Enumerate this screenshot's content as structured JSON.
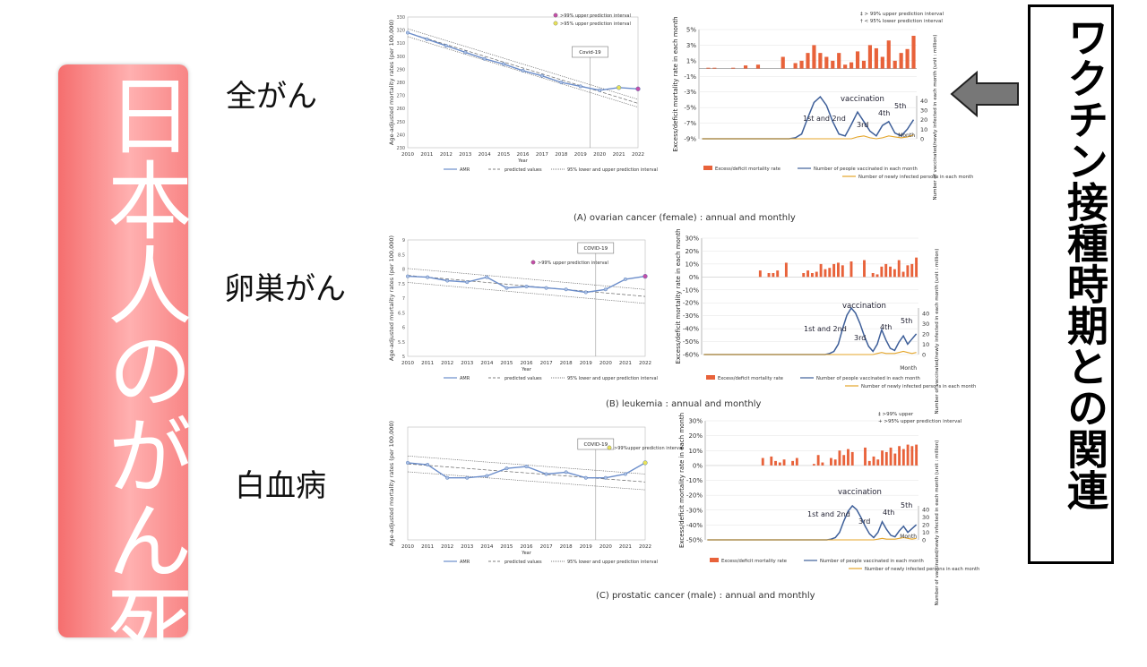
{
  "left_banner": {
    "text": "日本人のがん死"
  },
  "right_box": {
    "text": "ワクチン接種時期との関連"
  },
  "row_labels": [
    "全がん",
    "卵巣がん",
    "白血病"
  ],
  "captions": {
    "a": "(A) ovarian cancer (female) : annual and monthly",
    "b": "(B) leukemia : annual and monthly",
    "c": "(C) prostatic cancer (male) : annual and monthly"
  },
  "annual_common": {
    "years": [
      "2010",
      "2011",
      "2012",
      "2013",
      "2014",
      "2015",
      "2016",
      "2017",
      "2018",
      "2019",
      "2020",
      "2021",
      "2022"
    ],
    "xlabel": "Year",
    "ylabel": "Age-adjusted mortality rates (per 100,000)",
    "legend": [
      "AMR",
      "predicted values",
      "95% lower and upper prediction interval"
    ]
  },
  "monthly_common": {
    "ylabel_left": "Excess/deficit mortality rate in each month",
    "ylabel_right": "Number of vaccinated/newly infected in each month (unit : million)",
    "xlabel": "Month",
    "annotations": [
      "vaccination",
      "1st and 2nd",
      "3rd",
      "4th",
      "5th"
    ],
    "legend": [
      "Excess/deficit mortality rate",
      "Number of people vaccinated in each month",
      "Number of newly infected persons in each month"
    ],
    "right_ticks": [
      "0",
      "10",
      "20",
      "30",
      "40"
    ]
  },
  "chart_data": [
    {
      "type": "line",
      "panel": "all-cancer-annual",
      "x": [
        2010,
        2011,
        2012,
        2013,
        2014,
        2015,
        2016,
        2017,
        2018,
        2019,
        2020,
        2021,
        2022
      ],
      "series": [
        {
          "name": "AMR",
          "values": [
            318,
            313,
            308,
            303,
            298,
            294,
            289,
            285,
            280,
            277,
            274,
            276,
            275
          ]
        },
        {
          "name": "predicted values",
          "values": [
            318,
            313.5,
            309,
            304.5,
            300,
            295.5,
            291,
            286.5,
            282,
            277.5,
            273,
            268.5,
            264
          ]
        }
      ],
      "ylim": [
        230,
        330
      ],
      "yticks": [
        "230",
        "240",
        "250",
        "260",
        "270",
        "280",
        "290",
        "300",
        "310",
        "320",
        "330"
      ],
      "legend_notes": [
        ">99% upper prediction interval",
        ">95% upper prediction interval"
      ],
      "event_label": "Covid-19"
    },
    {
      "type": "bar",
      "panel": "all-cancer-monthly",
      "values": [
        0,
        0.1,
        0.1,
        0,
        0,
        0.1,
        0,
        0.4,
        0,
        0.5,
        0,
        0,
        0,
        1.5,
        0,
        0.7,
        1,
        2,
        3,
        2,
        1.5,
        1,
        2,
        0.5,
        0.8,
        2.2,
        1,
        3,
        2.6,
        1.5,
        3.6,
        1,
        2,
        2.5,
        4.2
      ],
      "ylim": [
        -9,
        5
      ],
      "yticks": [
        "5%",
        "3%",
        "1%",
        "-1%",
        "-3%",
        "-5%",
        "-7%",
        "-9%"
      ],
      "vaccinated": [
        0,
        0,
        0,
        0,
        0,
        0,
        0,
        0,
        0,
        0,
        0,
        0,
        0,
        0,
        0,
        1,
        5,
        22,
        38,
        44,
        35,
        18,
        5,
        3,
        15,
        28,
        18,
        8,
        3,
        14,
        18,
        6,
        3,
        10,
        20
      ],
      "infected": [
        0,
        0,
        0,
        0,
        0,
        0,
        0,
        0,
        0,
        0,
        0,
        0,
        0,
        0,
        0,
        0,
        0,
        0,
        0,
        0,
        0,
        0,
        0,
        0,
        0,
        2,
        3,
        1,
        0,
        1,
        3,
        2,
        1,
        2,
        4
      ],
      "legend_notes": [
        "‡ > 99% upper prediction interval",
        "† < 95% lower prediction interval"
      ]
    },
    {
      "type": "line",
      "panel": "ovarian-annual",
      "x": [
        2010,
        2011,
        2012,
        2013,
        2014,
        2015,
        2016,
        2017,
        2018,
        2019,
        2020,
        2021,
        2022
      ],
      "series": [
        {
          "name": "AMR",
          "values": [
            7.75,
            7.72,
            7.6,
            7.55,
            7.72,
            7.35,
            7.4,
            7.35,
            7.3,
            7.2,
            7.3,
            7.65,
            7.75
          ]
        },
        {
          "name": "predicted values",
          "values": [
            7.78,
            7.72,
            7.66,
            7.6,
            7.54,
            7.48,
            7.42,
            7.36,
            7.3,
            7.24,
            7.18,
            7.12,
            7.06
          ]
        }
      ],
      "ylim": [
        5,
        9
      ],
      "yticks": [
        "5",
        "5.5",
        "6",
        "6.5",
        "7",
        "7.5",
        "8",
        "8.5",
        "9"
      ],
      "legend_notes": [
        ">99% upper prediction interval"
      ],
      "event_label": "COVID-19"
    },
    {
      "type": "bar",
      "panel": "ovarian-monthly",
      "values": [
        0,
        0,
        0,
        0,
        0,
        0,
        0,
        0,
        0,
        0,
        0,
        0,
        0,
        5,
        0,
        3,
        3,
        5,
        0,
        11,
        0,
        0,
        0,
        3,
        5,
        3,
        4,
        10,
        6,
        7,
        10,
        11,
        9,
        0,
        12,
        0,
        0,
        13,
        0,
        3,
        2,
        8,
        10,
        8,
        6,
        13,
        4,
        9,
        10,
        15
      ],
      "ylim": [
        -60,
        30
      ],
      "yticks": [
        "30%",
        "20%",
        "10%",
        "0%",
        "-10%",
        "-20%",
        "-30%",
        "-40%",
        "-50%",
        "-60%"
      ],
      "vaccinated": [
        0,
        0,
        0,
        0,
        0,
        0,
        0,
        0,
        0,
        0,
        0,
        0,
        0,
        0,
        0,
        0,
        0,
        0,
        0,
        0,
        0,
        0,
        0,
        0,
        0,
        0,
        0,
        0,
        0,
        1,
        3,
        10,
        25,
        38,
        45,
        40,
        30,
        18,
        8,
        3,
        10,
        24,
        14,
        6,
        4,
        12,
        18,
        10,
        15,
        20
      ],
      "infected": [
        0,
        0,
        0,
        0,
        0,
        0,
        0,
        0,
        0,
        0,
        0,
        0,
        0,
        0,
        0,
        0,
        0,
        0,
        0,
        0,
        0,
        0,
        0,
        0,
        0,
        0,
        0,
        0,
        0,
        0,
        0,
        0,
        0,
        0,
        0,
        0,
        0,
        0,
        0,
        0,
        1,
        2,
        1,
        1,
        1,
        2,
        3,
        2,
        1,
        2
      ]
    },
    {
      "type": "line",
      "panel": "leukemia-annual",
      "x": [
        2010,
        2011,
        2012,
        2013,
        2014,
        2015,
        2016,
        2017,
        2018,
        2019,
        2020,
        2021,
        2022
      ],
      "series": [
        {
          "name": "AMR",
          "values": [
            7.05,
            7.0,
            6.65,
            6.65,
            6.7,
            6.9,
            6.95,
            6.75,
            6.8,
            6.65,
            6.65,
            6.75,
            7.05
          ]
        },
        {
          "name": "predicted values",
          "values": [
            7.02,
            6.98,
            6.94,
            6.9,
            6.86,
            6.82,
            6.78,
            6.74,
            6.7,
            6.66,
            6.62,
            6.58,
            6.54
          ]
        }
      ],
      "ylim": [
        5,
        8
      ],
      "legend_notes": [
        ">99%upper prediction interval"
      ],
      "event_label": "COVID-19"
    },
    {
      "type": "bar",
      "panel": "leukemia-monthly",
      "values": [
        0,
        0,
        0,
        0,
        0,
        0,
        0,
        0,
        0,
        0,
        0,
        0,
        0,
        5,
        0,
        6,
        3,
        2,
        4,
        0,
        3,
        5,
        0,
        0,
        0,
        1,
        7,
        2,
        0,
        5,
        4,
        10,
        7,
        11,
        9,
        0,
        0,
        12,
        3,
        6,
        4,
        10,
        9,
        12,
        8,
        13,
        11,
        14,
        13,
        14
      ],
      "ylim": [
        -50,
        30
      ],
      "yticks": [
        "30%",
        "20%",
        "10%",
        "0%",
        "-10%",
        "-20%",
        "-30%",
        "-40%",
        "-50%"
      ],
      "vaccinated": [
        0,
        0,
        0,
        0,
        0,
        0,
        0,
        0,
        0,
        0,
        0,
        0,
        0,
        0,
        0,
        0,
        0,
        0,
        0,
        0,
        0,
        0,
        0,
        0,
        0,
        0,
        0,
        0,
        0,
        1,
        3,
        10,
        25,
        38,
        45,
        40,
        30,
        18,
        8,
        3,
        10,
        24,
        14,
        6,
        4,
        12,
        18,
        10,
        15,
        20
      ],
      "infected": [
        0,
        0,
        0,
        0,
        0,
        0,
        0,
        0,
        0,
        0,
        0,
        0,
        0,
        0,
        0,
        0,
        0,
        0,
        0,
        0,
        0,
        0,
        0,
        0,
        0,
        0,
        0,
        0,
        0,
        0,
        0,
        0,
        0,
        0,
        0,
        0,
        0,
        0,
        0,
        0,
        1,
        2,
        1,
        1,
        1,
        2,
        3,
        2,
        1,
        2
      ],
      "legend_notes": [
        "‡ >99% upper",
        "+ >95% upper prediction interval"
      ]
    }
  ]
}
